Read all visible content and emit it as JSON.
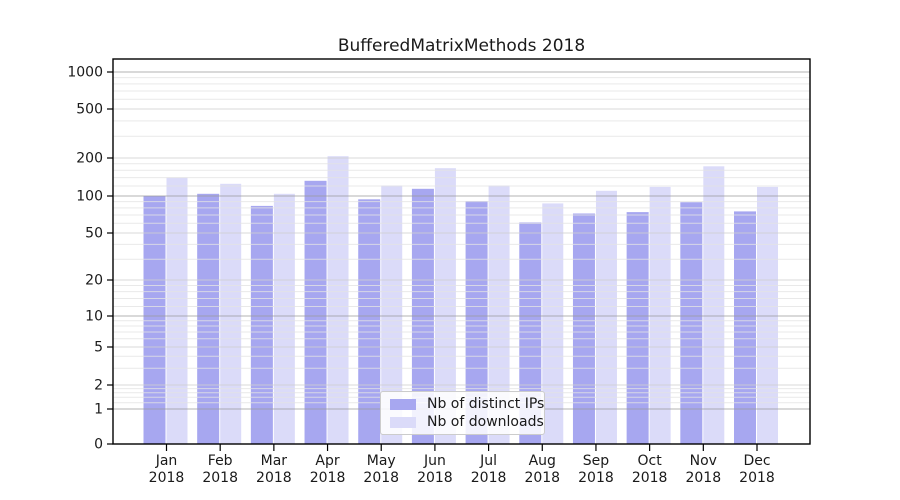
{
  "figure": {
    "title": "BufferedMatrixMethods 2018"
  },
  "chart_data": {
    "type": "bar",
    "title": "BufferedMatrixMethods 2018",
    "categories": [
      "Jan",
      "Feb",
      "Mar",
      "Apr",
      "May",
      "Jun",
      "Jul",
      "Aug",
      "Sep",
      "Oct",
      "Nov",
      "Dec"
    ],
    "x_year_label": "2018",
    "series": [
      {
        "name": "Nb of distinct IPs",
        "color": "#a7a7f0",
        "values": [
          100,
          104,
          83,
          132,
          94,
          114,
          91,
          61,
          72,
          74,
          89,
          75
        ]
      },
      {
        "name": "Nb of downloads",
        "color": "#dbdbf9",
        "values": [
          140,
          125,
          104,
          207,
          121,
          166,
          121,
          87,
          110,
          118,
          172,
          118
        ]
      }
    ],
    "yticks": [
      0,
      1,
      2,
      5,
      10,
      20,
      50,
      100,
      200,
      500,
      1000
    ],
    "ylim": [
      0,
      1000
    ],
    "yscale": "log-like with 1-2-5 ticks and zero baseline",
    "xlabel": "",
    "ylabel": "",
    "grid": true,
    "legend_position": "bottom-center"
  },
  "colors": {
    "background": "#ffffff",
    "axis": "#000000",
    "tick_label": "#1a1a1a",
    "grid_major": "#9a9a9a",
    "grid_medium": "#cfcfcf",
    "grid_minor": "#e4e4e4"
  }
}
